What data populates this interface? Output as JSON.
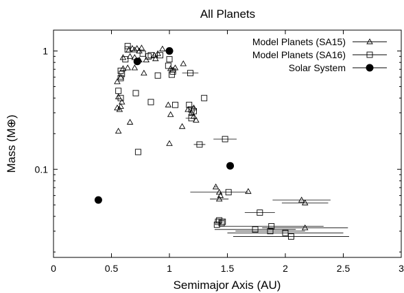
{
  "chart_data": {
    "type": "scatter",
    "title": "All Planets",
    "xlabel": "Semimajor Axis (AU)",
    "ylabel": "Mass (M⊕)",
    "xlim": [
      0,
      3
    ],
    "ylim": [
      0.018,
      1.5
    ],
    "yscale": "log",
    "grid": false,
    "legend_position": "top-right",
    "x_ticks": [
      {
        "value": 0,
        "label": "0"
      },
      {
        "value": 0.5,
        "label": "0.5"
      },
      {
        "value": 1,
        "label": "1"
      },
      {
        "value": 1.5,
        "label": "1.5"
      },
      {
        "value": 2,
        "label": "2"
      },
      {
        "value": 2.5,
        "label": "2.5"
      },
      {
        "value": 3,
        "label": "3"
      }
    ],
    "y_ticks": [
      {
        "value": 0.1,
        "label": "0.1"
      },
      {
        "value": 1,
        "label": "1"
      }
    ],
    "series": [
      {
        "name": "Model Planets (SA15)",
        "marker": "triangle",
        "points": [
          {
            "x": 0.65,
            "y": 1.02
          },
          {
            "x": 0.68,
            "y": 1.05
          },
          {
            "x": 0.7,
            "y": 1.02
          },
          {
            "x": 0.72,
            "y": 1.05
          },
          {
            "x": 0.74,
            "y": 1.0
          },
          {
            "x": 0.76,
            "y": 1.06
          },
          {
            "x": 0.87,
            "y": 0.92
          },
          {
            "x": 0.9,
            "y": 0.95
          },
          {
            "x": 0.94,
            "y": 1.04
          },
          {
            "x": 0.6,
            "y": 0.88
          },
          {
            "x": 0.66,
            "y": 0.9
          },
          {
            "x": 0.7,
            "y": 0.88
          },
          {
            "x": 0.74,
            "y": 0.84
          },
          {
            "x": 0.8,
            "y": 0.84
          },
          {
            "x": 0.88,
            "y": 0.86
          },
          {
            "x": 1.01,
            "y": 0.71
          },
          {
            "x": 1.03,
            "y": 0.69
          },
          {
            "x": 1.05,
            "y": 0.72
          },
          {
            "x": 1.12,
            "y": 0.78
          },
          {
            "x": 0.6,
            "y": 0.71
          },
          {
            "x": 0.64,
            "y": 0.72
          },
          {
            "x": 0.7,
            "y": 0.72
          },
          {
            "x": 0.78,
            "y": 0.65
          },
          {
            "x": 0.58,
            "y": 0.6
          },
          {
            "x": 0.55,
            "y": 0.55
          },
          {
            "x": 0.59,
            "y": 0.37
          },
          {
            "x": 0.58,
            "y": 0.34
          },
          {
            "x": 0.57,
            "y": 0.32
          },
          {
            "x": 0.55,
            "y": 0.33
          },
          {
            "x": 0.56,
            "y": 0.41
          },
          {
            "x": 0.56,
            "y": 0.21
          },
          {
            "x": 0.66,
            "y": 0.25
          },
          {
            "x": 0.99,
            "y": 0.35
          },
          {
            "x": 1.01,
            "y": 0.29
          },
          {
            "x": 1.16,
            "y": 0.32
          },
          {
            "x": 1.19,
            "y": 0.3
          },
          {
            "x": 1.21,
            "y": 0.33
          },
          {
            "x": 1.21,
            "y": 0.28
          },
          {
            "x": 1.23,
            "y": 0.26
          },
          {
            "x": 1.11,
            "y": 0.23
          },
          {
            "x": 1.0,
            "y": 0.165
          },
          {
            "x": 1.4,
            "y": 0.071,
            "xerr": 0.01
          },
          {
            "x": 1.43,
            "y": 0.064,
            "xerr": 0.25
          },
          {
            "x": 1.44,
            "y": 0.06
          },
          {
            "x": 1.43,
            "y": 0.056,
            "xerr": 0.08
          },
          {
            "x": 1.68,
            "y": 0.065
          },
          {
            "x": 2.14,
            "y": 0.055,
            "xerr": 0.25
          },
          {
            "x": 2.17,
            "y": 0.052,
            "xerr": 0.2
          },
          {
            "x": 2.17,
            "y": 0.032,
            "xerr": 0.37
          }
        ]
      },
      {
        "name": "Model Planets (SA16)",
        "marker": "square",
        "points": [
          {
            "x": 0.64,
            "y": 1.1
          },
          {
            "x": 0.64,
            "y": 1.03
          },
          {
            "x": 0.77,
            "y": 0.95
          },
          {
            "x": 0.82,
            "y": 0.9
          },
          {
            "x": 0.84,
            "y": 0.92
          },
          {
            "x": 0.92,
            "y": 0.92
          },
          {
            "x": 0.9,
            "y": 0.62
          },
          {
            "x": 0.62,
            "y": 0.85
          },
          {
            "x": 1.0,
            "y": 0.85
          },
          {
            "x": 0.99,
            "y": 0.75
          },
          {
            "x": 1.03,
            "y": 0.67
          },
          {
            "x": 1.02,
            "y": 0.63
          },
          {
            "x": 1.18,
            "y": 0.65,
            "xerr": 0.07
          },
          {
            "x": 0.58,
            "y": 0.68
          },
          {
            "x": 0.59,
            "y": 0.64
          },
          {
            "x": 0.58,
            "y": 0.59
          },
          {
            "x": 0.56,
            "y": 0.46
          },
          {
            "x": 0.58,
            "y": 0.4
          },
          {
            "x": 0.71,
            "y": 0.44
          },
          {
            "x": 0.84,
            "y": 0.37
          },
          {
            "x": 1.05,
            "y": 0.35
          },
          {
            "x": 1.17,
            "y": 0.35
          },
          {
            "x": 1.19,
            "y": 0.32
          },
          {
            "x": 1.21,
            "y": 0.31
          },
          {
            "x": 1.3,
            "y": 0.4
          },
          {
            "x": 1.19,
            "y": 0.27,
            "xerr": 0.05
          },
          {
            "x": 0.73,
            "y": 0.14
          },
          {
            "x": 1.26,
            "y": 0.162,
            "xerr": 0.05
          },
          {
            "x": 1.48,
            "y": 0.18,
            "xerr": 0.1
          },
          {
            "x": 1.51,
            "y": 0.064
          },
          {
            "x": 1.78,
            "y": 0.043,
            "xerr": 0.13
          },
          {
            "x": 1.42,
            "y": 0.036
          },
          {
            "x": 1.43,
            "y": 0.037
          },
          {
            "x": 1.45,
            "y": 0.036
          },
          {
            "x": 1.46,
            "y": 0.036
          },
          {
            "x": 1.41,
            "y": 0.034
          },
          {
            "x": 1.45,
            "y": 0.035
          },
          {
            "x": 1.74,
            "y": 0.031,
            "xerr": 0.35
          },
          {
            "x": 1.88,
            "y": 0.033,
            "xerr": 0.45
          },
          {
            "x": 1.87,
            "y": 0.03,
            "xerr": 0.3
          },
          {
            "x": 2.0,
            "y": 0.029,
            "xerr": 0.5
          },
          {
            "x": 2.05,
            "y": 0.027,
            "xerr": 0.5
          }
        ]
      },
      {
        "name": "Solar System",
        "marker": "circle",
        "points": [
          {
            "x": 0.387,
            "y": 0.055
          },
          {
            "x": 0.723,
            "y": 0.815
          },
          {
            "x": 1.0,
            "y": 1.0
          },
          {
            "x": 1.524,
            "y": 0.107
          }
        ]
      }
    ]
  }
}
